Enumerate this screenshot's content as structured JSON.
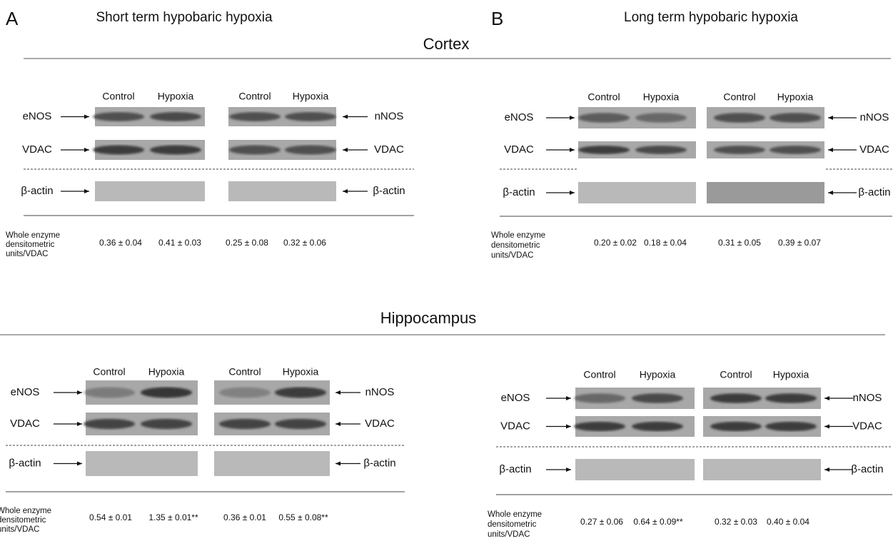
{
  "panels": [
    {
      "label": "A",
      "title": "Short term hypobaric hypoxia"
    },
    {
      "label": "B",
      "title": "Long term hypobaric hypoxia"
    }
  ],
  "sections": [
    {
      "title": "Cortex",
      "blocks": [
        {
          "columns": [
            "Control",
            "Hypoxia",
            "Control",
            "Hypoxia"
          ],
          "left_labels": [
            "eNOS",
            "VDAC",
            "β-actin"
          ],
          "right_labels": [
            "nNOS",
            "VDAC",
            "β-actin"
          ],
          "caption": [
            "Whole enzyme",
            "densitometric",
            "units/VDAC"
          ],
          "values": [
            "0.36 ± 0.04",
            "0.41 ± 0.03",
            "0.25 ± 0.08",
            "0.32 ± 0.06"
          ]
        },
        {
          "columns": [
            "Control",
            "Hypoxia",
            "Control",
            "Hypoxia"
          ],
          "left_labels": [
            "eNOS",
            "VDAC",
            "β-actin"
          ],
          "right_labels": [
            "nNOS",
            "VDAC",
            "β-actin"
          ],
          "caption": [
            "Whole enzyme",
            "densitometric",
            "units/VDAC"
          ],
          "values": [
            "0.20 ± 0.02",
            "0.18 ± 0.04",
            "0.31 ± 0.05",
            "0.39 ± 0.07"
          ]
        }
      ]
    },
    {
      "title": "Hippocampus",
      "blocks": [
        {
          "columns": [
            "Control",
            "Hypoxia",
            "Control",
            "Hypoxia"
          ],
          "left_labels": [
            "eNOS",
            "VDAC",
            "β-actin"
          ],
          "right_labels": [
            "nNOS",
            "VDAC",
            "β-actin"
          ],
          "caption": [
            "Whole enzyme",
            "densitometric",
            "units/VDAC"
          ],
          "values": [
            "0.54 ± 0.01",
            "1.35 ± 0.01**",
            "0.36 ± 0.01",
            "0.55 ± 0.08**"
          ]
        },
        {
          "columns": [
            "Control",
            "Hypoxia",
            "Control",
            "Hypoxia"
          ],
          "left_labels": [
            "eNOS",
            "VDAC",
            "β-actin"
          ],
          "right_labels": [
            "nNOS",
            "VDAC",
            "β-actin"
          ],
          "caption": [
            "Whole enzyme",
            "densitometric",
            "units/VDAC"
          ],
          "values": [
            "0.27 ± 0.06",
            "0.64 ± 0.09**",
            "0.32 ± 0.03",
            "0.40 ± 0.04"
          ]
        }
      ]
    }
  ]
}
